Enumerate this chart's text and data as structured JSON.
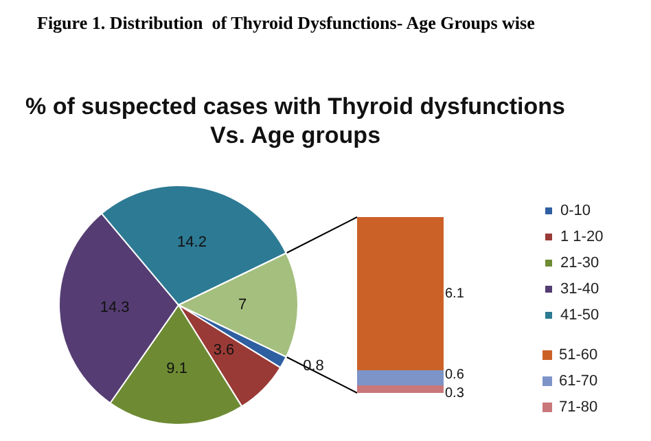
{
  "chart_data": [
    {
      "type": "pie",
      "title": "% of suspected cases with Thyroid dysfunctions\nVs. Age groups",
      "annotations": [
        "Figure 1. Distribution  of Thyroid Dysfunctions- Age Groups wise"
      ],
      "categories": [
        "0-10",
        "1 1-20",
        "21-30",
        "31-40",
        "41-50",
        null
      ],
      "values": [
        0.8,
        3.6,
        9.1,
        14.3,
        14.2,
        7
      ],
      "colors": [
        "#2e5fa1",
        "#9a3a36",
        "#6e8b34",
        "#553d73",
        "#2d7a94",
        "#a5bf7e"
      ],
      "data_labels": true,
      "legend": "right"
    },
    {
      "type": "bar",
      "stacked": true,
      "categories": [
        null
      ],
      "series": [
        {
          "name": "71-80",
          "color": "#c9777a",
          "values": [
            0.3
          ]
        },
        {
          "name": "61-70",
          "color": "#7c94c8",
          "values": [
            0.6
          ]
        },
        {
          "name": "51-60",
          "color": "#cc6128",
          "values": [
            6.1
          ]
        }
      ],
      "data_labels": true,
      "legend": "right",
      "tick_labels": false
    }
  ]
}
